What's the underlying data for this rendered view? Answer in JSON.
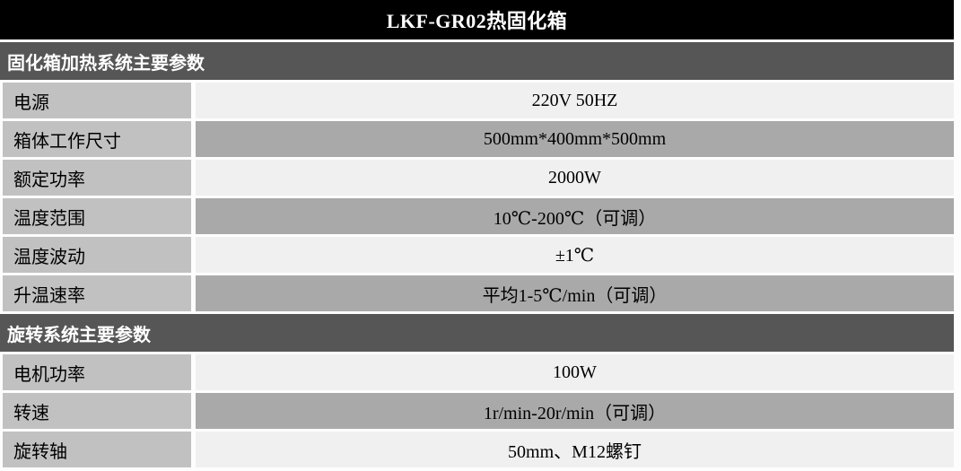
{
  "table": {
    "title": "LKF-GR02热固化箱",
    "colors": {
      "title_bg": "#000000",
      "title_text": "#ffffff",
      "section_bg": "#565656",
      "section_text": "#ffffff",
      "label_bg": "#c1c1c1",
      "value_light_bg": "#f0f0f0",
      "value_dark_bg": "#a9a9a9",
      "body_text": "#000000"
    },
    "sections": [
      {
        "header": "固化箱加热系统主要参数",
        "rows": [
          {
            "label": "电源",
            "value": "220V 50HZ",
            "shade": "light"
          },
          {
            "label": "箱体工作尺寸",
            "value": "500mm*400mm*500mm",
            "shade": "dark"
          },
          {
            "label": "额定功率",
            "value": "2000W",
            "shade": "light"
          },
          {
            "label": "温度范围",
            "value": "10℃-200℃（可调）",
            "shade": "dark"
          },
          {
            "label": "温度波动",
            "value": "±1℃",
            "shade": "light"
          },
          {
            "label": "升温速率",
            "value": "平均1-5℃/min（可调）",
            "shade": "dark"
          }
        ]
      },
      {
        "header": "旋转系统主要参数",
        "rows": [
          {
            "label": "电机功率",
            "value": "100W",
            "shade": "light"
          },
          {
            "label": "转速",
            "value": "1r/min-20r/min（可调）",
            "shade": "dark"
          },
          {
            "label": "旋转轴",
            "value": "50mm、M12螺钉",
            "shade": "light"
          }
        ]
      }
    ]
  }
}
